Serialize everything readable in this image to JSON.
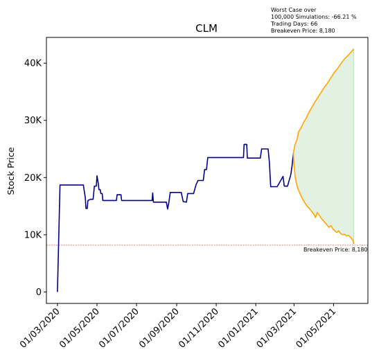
{
  "chart_data": {
    "type": "line",
    "title": "CLM",
    "xlabel": "",
    "ylabel": "Stock Price",
    "xlim": [
      "2020-02-13",
      "2021-06-23"
    ],
    "ylim": [
      -2000,
      44500
    ],
    "yticks": [
      {
        "value": 0,
        "label": "0"
      },
      {
        "value": 10000,
        "label": "10K"
      },
      {
        "value": 20000,
        "label": "20K"
      },
      {
        "value": 30000,
        "label": "30K"
      },
      {
        "value": 40000,
        "label": "40K"
      }
    ],
    "xticks": [
      {
        "value": "2020-03-01",
        "label": "01/03/2020"
      },
      {
        "value": "2020-05-01",
        "label": "01/05/2020"
      },
      {
        "value": "2020-07-01",
        "label": "01/07/2020"
      },
      {
        "value": "2020-09-01",
        "label": "01/09/2020"
      },
      {
        "value": "2020-11-01",
        "label": "01/11/2020"
      },
      {
        "value": "2021-01-01",
        "label": "01/01/2021"
      },
      {
        "value": "2021-03-01",
        "label": "01/03/2021"
      },
      {
        "value": "2021-05-01",
        "label": "01/05/2021"
      }
    ],
    "grid": false,
    "colors": {
      "history": "#00008b",
      "projection": "#ffa500",
      "band": "#e3f1e3",
      "band_edge": "#b9deb9",
      "breakeven": "#d62728"
    },
    "series": [
      {
        "role": "price-history",
        "points": [
          [
            "2020-03-01",
            0
          ],
          [
            "2020-03-05",
            18700
          ],
          [
            "2020-04-10",
            18700
          ],
          [
            "2020-04-13",
            16500
          ],
          [
            "2020-04-14",
            14600
          ],
          [
            "2020-04-16",
            14600
          ],
          [
            "2020-04-17",
            16000
          ],
          [
            "2020-04-21",
            16200
          ],
          [
            "2020-04-25",
            16200
          ],
          [
            "2020-04-27",
            18500
          ],
          [
            "2020-04-30",
            18500
          ],
          [
            "2020-05-01",
            20300
          ],
          [
            "2020-05-03",
            19000
          ],
          [
            "2020-05-04",
            17900
          ],
          [
            "2020-05-06",
            17900
          ],
          [
            "2020-05-07",
            17200
          ],
          [
            "2020-05-09",
            17200
          ],
          [
            "2020-05-10",
            16000
          ],
          [
            "2020-05-31",
            16000
          ],
          [
            "2020-06-01",
            17000
          ],
          [
            "2020-06-07",
            17000
          ],
          [
            "2020-06-08",
            16000
          ],
          [
            "2020-07-25",
            16000
          ],
          [
            "2020-07-26",
            17300
          ],
          [
            "2020-07-27",
            15700
          ],
          [
            "2020-08-16",
            15700
          ],
          [
            "2020-08-18",
            14500
          ],
          [
            "2020-08-20",
            15700
          ],
          [
            "2020-08-22",
            17400
          ],
          [
            "2020-09-08",
            17400
          ],
          [
            "2020-09-11",
            15800
          ],
          [
            "2020-09-16",
            15700
          ],
          [
            "2020-09-18",
            17200
          ],
          [
            "2020-09-27",
            17200
          ],
          [
            "2020-10-01",
            18800
          ],
          [
            "2020-10-04",
            19500
          ],
          [
            "2020-10-12",
            19500
          ],
          [
            "2020-10-14",
            21400
          ],
          [
            "2020-10-17",
            21400
          ],
          [
            "2020-10-18",
            22500
          ],
          [
            "2020-10-19",
            23500
          ],
          [
            "2020-12-13",
            23500
          ],
          [
            "2020-12-14",
            25800
          ],
          [
            "2020-12-18",
            25800
          ],
          [
            "2020-12-19",
            23400
          ],
          [
            "2021-01-08",
            23400
          ],
          [
            "2021-01-10",
            25000
          ],
          [
            "2021-01-20",
            25000
          ],
          [
            "2021-01-22",
            22700
          ],
          [
            "2021-01-24",
            18400
          ],
          [
            "2021-02-03",
            18400
          ],
          [
            "2021-02-08",
            19400
          ],
          [
            "2021-02-12",
            20200
          ],
          [
            "2021-02-14",
            18500
          ],
          [
            "2021-02-19",
            18500
          ],
          [
            "2021-02-24",
            20500
          ],
          [
            "2021-02-26",
            22000
          ],
          [
            "2021-02-28",
            24200
          ]
        ]
      },
      {
        "role": "simulated-best-case",
        "points": [
          [
            "2021-02-28",
            24200
          ],
          [
            "2021-03-02",
            25600
          ],
          [
            "2021-03-06",
            26800
          ],
          [
            "2021-03-08",
            28000
          ],
          [
            "2021-03-12",
            28700
          ],
          [
            "2021-03-16",
            29700
          ],
          [
            "2021-03-20",
            30400
          ],
          [
            "2021-03-24",
            31400
          ],
          [
            "2021-03-28",
            32200
          ],
          [
            "2021-04-01",
            33000
          ],
          [
            "2021-04-05",
            33700
          ],
          [
            "2021-04-09",
            34400
          ],
          [
            "2021-04-13",
            35100
          ],
          [
            "2021-04-17",
            35800
          ],
          [
            "2021-04-21",
            36400
          ],
          [
            "2021-04-25",
            37100
          ],
          [
            "2021-04-29",
            37800
          ],
          [
            "2021-05-03",
            38500
          ],
          [
            "2021-05-07",
            39000
          ],
          [
            "2021-05-11",
            39700
          ],
          [
            "2021-05-15",
            40300
          ],
          [
            "2021-05-19",
            40900
          ],
          [
            "2021-05-23",
            41300
          ],
          [
            "2021-05-27",
            41800
          ],
          [
            "2021-05-31",
            42300
          ],
          [
            "2021-06-01",
            42500
          ]
        ]
      },
      {
        "role": "simulated-worst-case",
        "points": [
          [
            "2021-02-28",
            24200
          ],
          [
            "2021-03-01",
            22000
          ],
          [
            "2021-03-03",
            20000
          ],
          [
            "2021-03-05",
            18800
          ],
          [
            "2021-03-08",
            17800
          ],
          [
            "2021-03-11",
            17000
          ],
          [
            "2021-03-14",
            16300
          ],
          [
            "2021-03-17",
            15700
          ],
          [
            "2021-03-20",
            15200
          ],
          [
            "2021-03-23",
            14800
          ],
          [
            "2021-03-26",
            14400
          ],
          [
            "2021-03-29",
            14000
          ],
          [
            "2021-04-01",
            13500
          ],
          [
            "2021-04-03",
            13000
          ],
          [
            "2021-04-06",
            13900
          ],
          [
            "2021-04-09",
            13400
          ],
          [
            "2021-04-12",
            12900
          ],
          [
            "2021-04-15",
            12500
          ],
          [
            "2021-04-18",
            12100
          ],
          [
            "2021-04-21",
            11700
          ],
          [
            "2021-04-24",
            11300
          ],
          [
            "2021-04-27",
            11600
          ],
          [
            "2021-04-30",
            11000
          ],
          [
            "2021-05-03",
            10700
          ],
          [
            "2021-05-06",
            10400
          ],
          [
            "2021-05-09",
            10700
          ],
          [
            "2021-05-12",
            10200
          ],
          [
            "2021-05-15",
            10000
          ],
          [
            "2021-05-18",
            10100
          ],
          [
            "2021-05-21",
            9800
          ],
          [
            "2021-05-24",
            9900
          ],
          [
            "2021-05-27",
            9600
          ],
          [
            "2021-05-29",
            9300
          ],
          [
            "2021-05-31",
            9000
          ],
          [
            "2021-06-01",
            8400
          ]
        ]
      }
    ],
    "breakeven": {
      "value": 8180,
      "label": "Breakeven Price: 8,180"
    },
    "info_box": [
      "Worst Case over",
      "100,000 Simulations: -66.21 %",
      "Trading Days: 66",
      "Breakeven Price: 8,180"
    ]
  }
}
